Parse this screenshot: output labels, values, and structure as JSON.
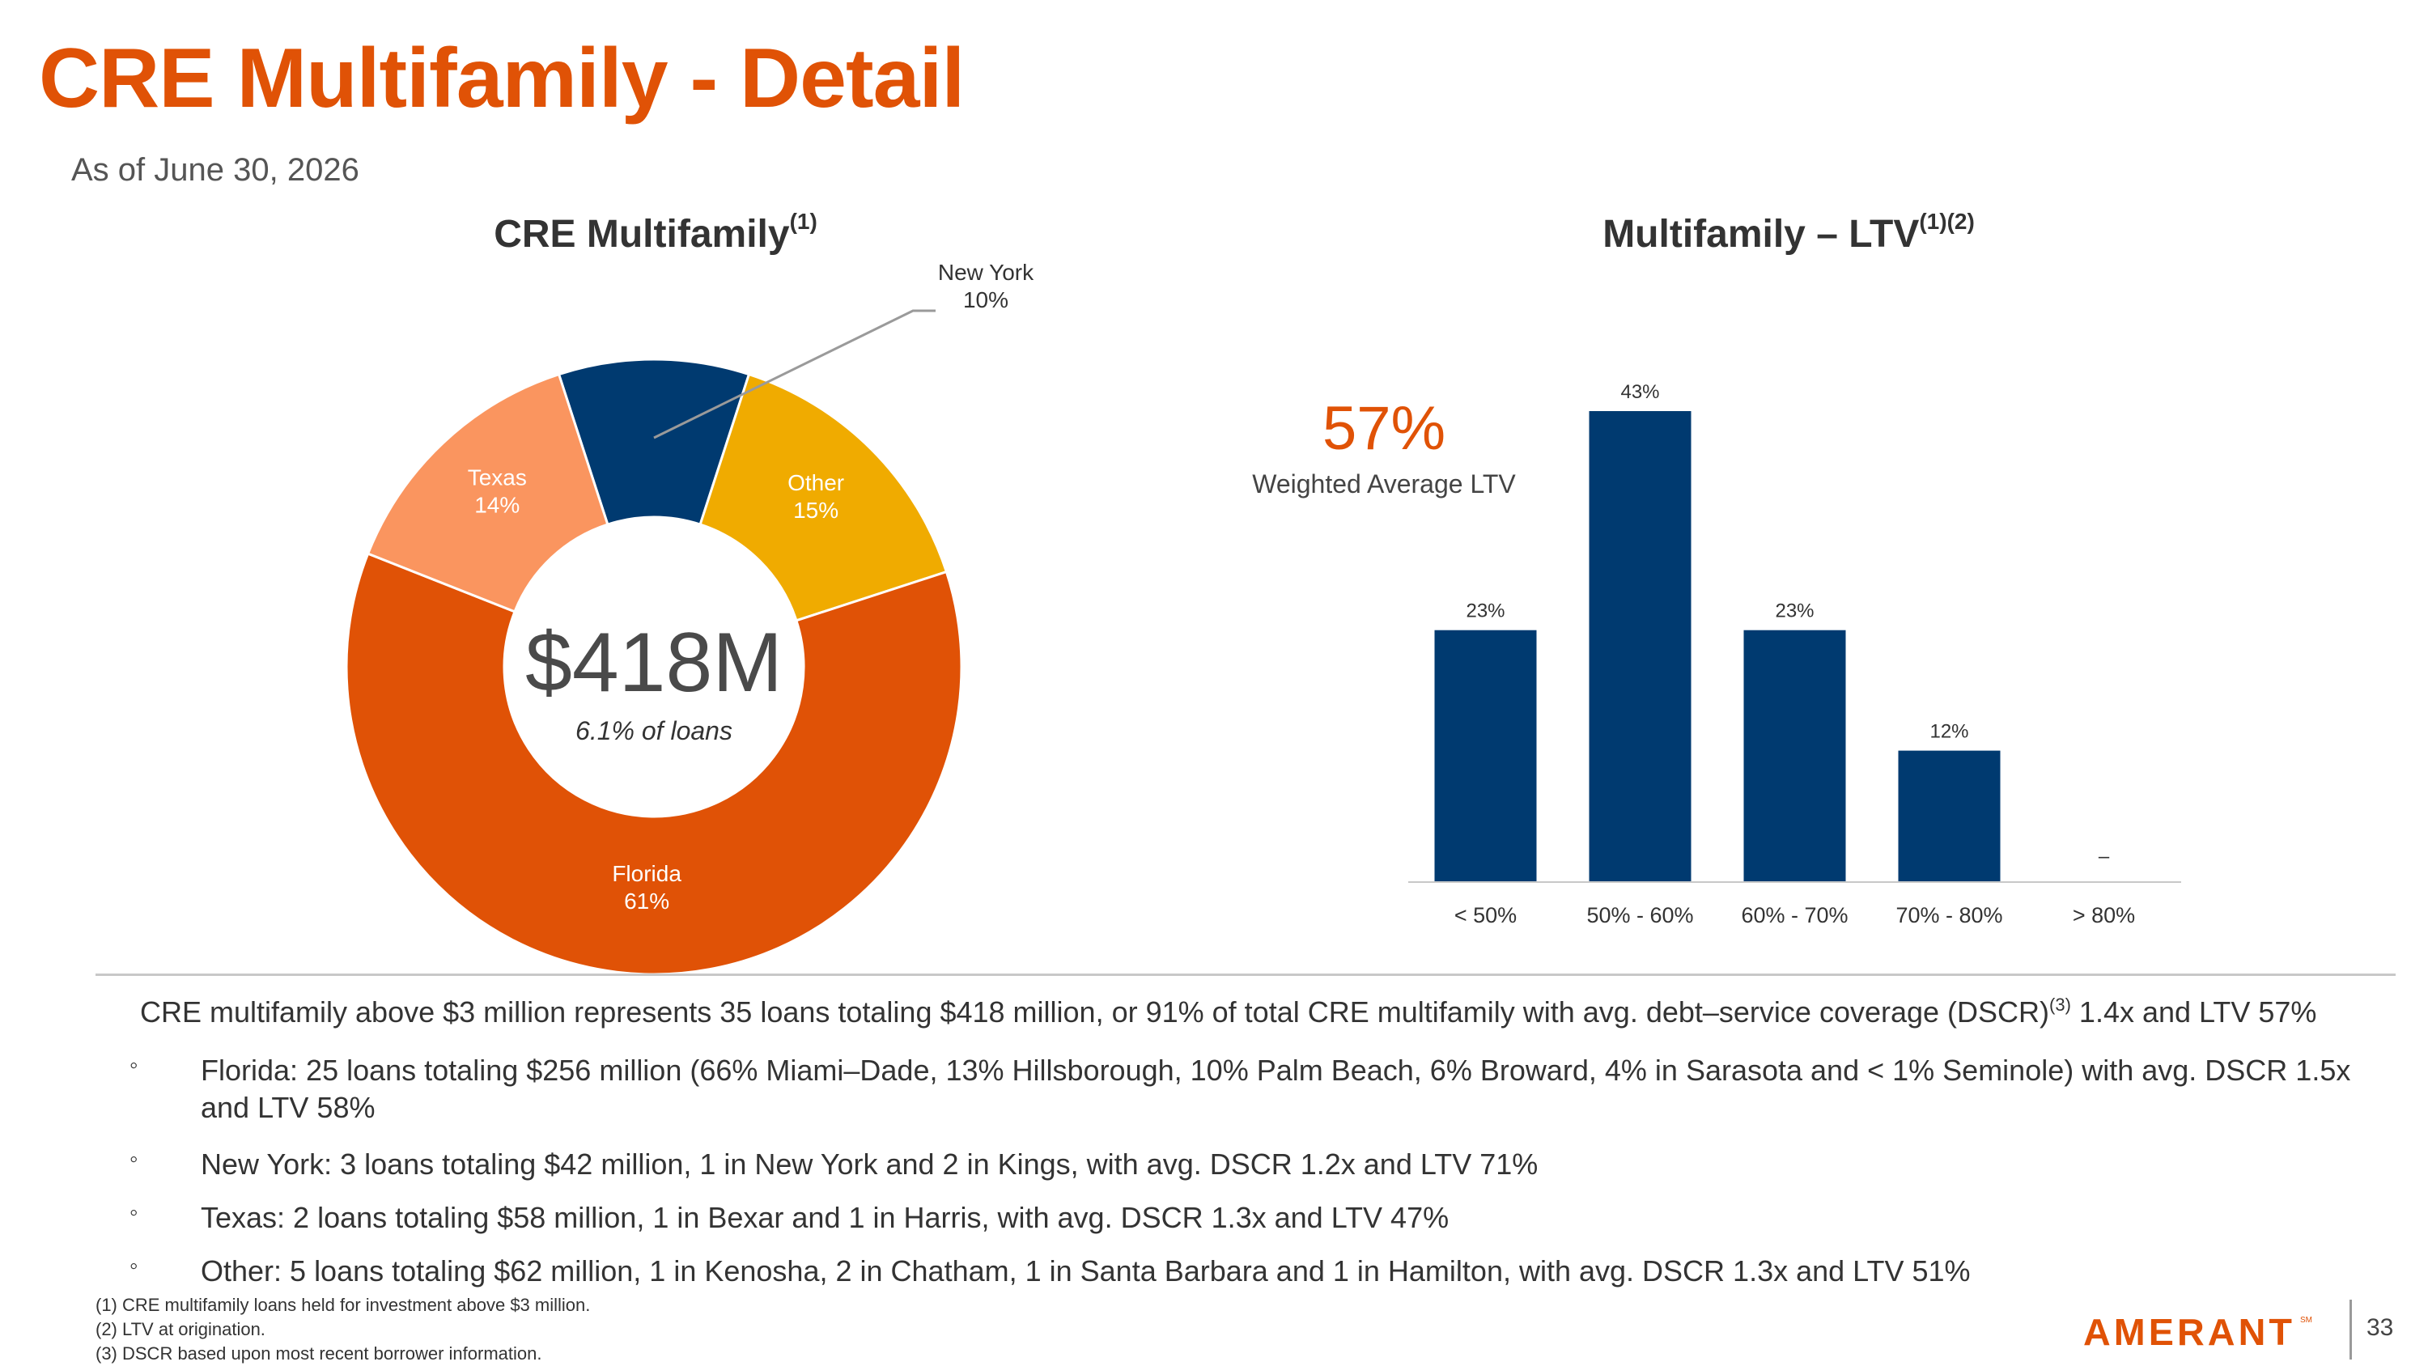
{
  "header": {
    "title": "CRE Multifamily - Detail",
    "as_of": "As of June 30, 2026"
  },
  "panels": {
    "left_title": "CRE Multifamily",
    "left_title_sup": "(1)",
    "right_title": "Multifamily – LTV",
    "right_title_sup": "(1)(2)"
  },
  "donut": {
    "center_value": "$418M",
    "center_sub": "6.1% of loans"
  },
  "ltv": {
    "weighted_avg_value": "57%",
    "weighted_avg_label": "Weighted Average LTV"
  },
  "chart_data": [
    {
      "type": "pie",
      "donut": true,
      "title": "CRE Multifamily",
      "slices": [
        {
          "label": "New York",
          "value": 10,
          "display": "10%",
          "color": "#003A70"
        },
        {
          "label": "Other",
          "value": 15,
          "display": "15%",
          "color": "#F0AB00"
        },
        {
          "label": "Florida",
          "value": 61,
          "display": "61%",
          "color": "#E05206"
        },
        {
          "label": "Texas",
          "value": 14,
          "display": "14%",
          "color": "#FA955F"
        }
      ]
    },
    {
      "type": "bar",
      "title": "Multifamily – LTV",
      "categories": [
        "< 50%",
        "50% - 60%",
        "60% - 70%",
        "70% - 80%",
        "> 80%"
      ],
      "values": [
        23,
        43,
        23,
        12,
        0
      ],
      "data_labels": [
        "23%",
        "43%",
        "23%",
        "12%",
        "–"
      ],
      "ylim": [
        0,
        43
      ],
      "color": "#003A70",
      "grid": false
    }
  ],
  "summary": {
    "lead_a": "CRE multifamily above $3 million represents 35 loans totaling $418 million, or 91% of total CRE multifamily with avg. debt–service coverage (DSCR)",
    "lead_sup": "(3)",
    "lead_b": " 1.4x and LTV 57%",
    "bullet_symbol": "◦",
    "bullets": [
      "Florida: 25 loans totaling $256 million (66% Miami–Dade, 13% Hillsborough, 10% Palm Beach, 6% Broward, 4% in Sarasota and < 1% Seminole) with avg. DSCR 1.5x and LTV 58%",
      "New York: 3 loans totaling $42 million, 1 in New York and 2 in Kings, with avg. DSCR 1.2x and LTV 71%",
      "Texas: 2 loans totaling $58 million, 1 in Bexar and 1 in Harris, with avg. DSCR 1.3x and LTV 47%",
      "Other: 5 loans totaling $62 million, 1 in Kenosha, 2 in Chatham, 1 in Santa Barbara and 1 in Hamilton, with avg. DSCR 1.3x and LTV 51%"
    ]
  },
  "footnotes": [
    "(1) CRE multifamily loans held for investment above $3 million.",
    "(2) LTV at origination.",
    "(3) DSCR based upon most recent borrower information."
  ],
  "footer": {
    "logo_text": "AMERANT",
    "logo_mark": "SM",
    "page_number": "33"
  },
  "colors": {
    "accent": "#E05206",
    "navy": "#003A70",
    "gold": "#F0AB00",
    "light_orange": "#FA955F"
  }
}
